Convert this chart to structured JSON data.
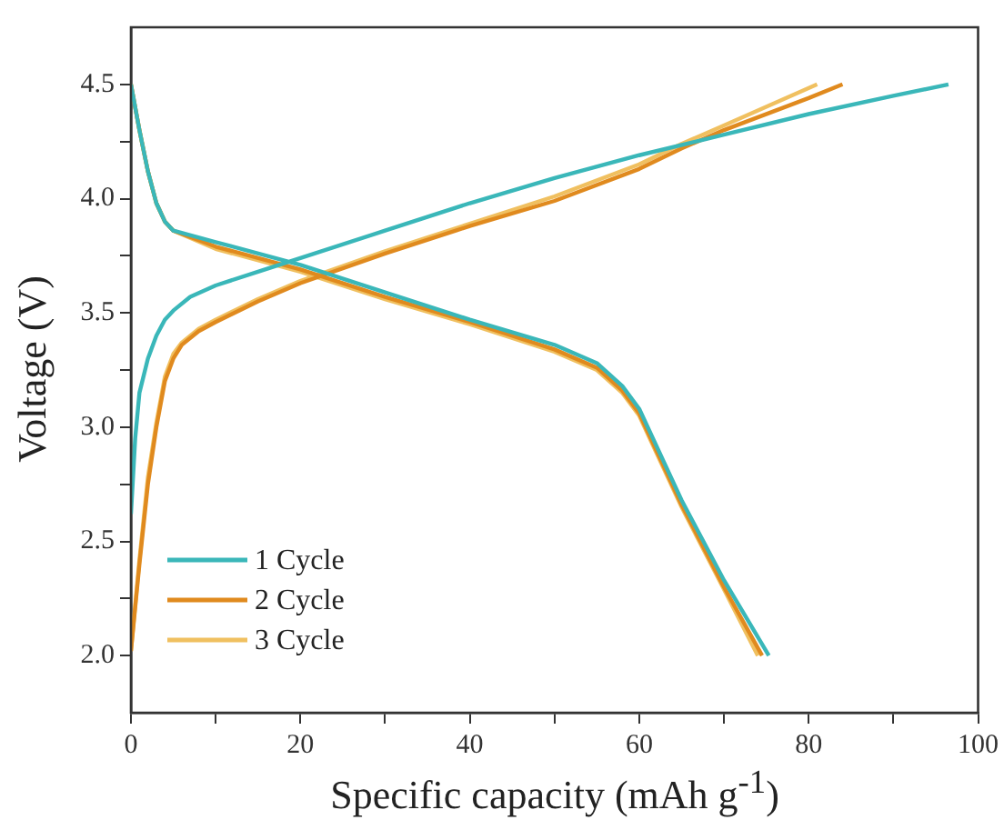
{
  "chart_data": {
    "type": "line",
    "xlabel": "Specific capacity (mAh g$^{-1}$)",
    "ylabel": "Voltage (V)",
    "xlim": [
      0,
      100
    ],
    "xticks": [
      0,
      {
        "value": 10,
        "label": null
      },
      20,
      {
        "value": 30,
        "label": null
      },
      40,
      {
        "value": 50,
        "label": null
      },
      60,
      {
        "value": 70,
        "label": null
      },
      80,
      {
        "value": 90,
        "label": null
      },
      100
    ],
    "ylim": [
      1.75,
      4.75
    ],
    "yticks": [
      {
        "value": 2,
        "label": "2.0"
      },
      {
        "value": 2.25,
        "label": null
      },
      {
        "value": 2.5,
        "label": "2.5"
      },
      {
        "value": 2.75,
        "label": null
      },
      {
        "value": 3,
        "label": "3.0"
      },
      {
        "value": 3.25,
        "label": null
      },
      {
        "value": 3.5,
        "label": "3.5"
      },
      {
        "value": 3.75,
        "label": null
      },
      {
        "value": 4,
        "label": "4.0"
      },
      {
        "value": 4.25,
        "label": null
      },
      {
        "value": 4.5,
        "label": "4.5"
      }
    ],
    "grid": false,
    "legend": "bottom left",
    "marker": "none",
    "line_style": "solid",
    "series": [
      {
        "name": "1 Cycle",
        "color": "#3ab7b9",
        "x": [
          0,
          0.5,
          1,
          2,
          3,
          4,
          5,
          7,
          10,
          15,
          20,
          30,
          40,
          50,
          60,
          70,
          80,
          90,
          96.5,
          null,
          0,
          1,
          2,
          3,
          4,
          5,
          10,
          20,
          30,
          40,
          50,
          55,
          58,
          60,
          62,
          65,
          70,
          75.3
        ],
        "values": [
          2.62,
          2.95,
          3.15,
          3.3,
          3.4,
          3.47,
          3.51,
          3.57,
          3.62,
          3.68,
          3.74,
          3.86,
          3.98,
          4.09,
          4.19,
          4.28,
          4.37,
          4.45,
          4.5,
          null,
          4.5,
          4.3,
          4.12,
          3.98,
          3.9,
          3.86,
          3.81,
          3.71,
          3.59,
          3.47,
          3.36,
          3.28,
          3.18,
          3.08,
          2.92,
          2.68,
          2.33,
          2.0
        ]
      },
      {
        "name": "2 Cycle",
        "color": "#e08a1e",
        "x": [
          0,
          1,
          2,
          3,
          4,
          5,
          6,
          8,
          10,
          15,
          20,
          30,
          40,
          50,
          60,
          65,
          70,
          80,
          84,
          null,
          0,
          1,
          2,
          3,
          4,
          5,
          10,
          20,
          30,
          40,
          50,
          55,
          58,
          60,
          62,
          65,
          70,
          74.5
        ],
        "values": [
          2.02,
          2.4,
          2.75,
          3.0,
          3.2,
          3.3,
          3.36,
          3.42,
          3.46,
          3.55,
          3.63,
          3.76,
          3.88,
          3.99,
          4.13,
          4.22,
          4.3,
          4.44,
          4.5,
          null,
          4.5,
          4.3,
          4.12,
          3.98,
          3.9,
          3.86,
          3.79,
          3.69,
          3.57,
          3.46,
          3.34,
          3.26,
          3.16,
          3.06,
          2.9,
          2.66,
          2.3,
          2.0
        ]
      },
      {
        "name": "3 Cycle",
        "color": "#f0c060",
        "x": [
          0,
          1,
          2,
          3,
          4,
          5,
          6,
          8,
          10,
          15,
          20,
          30,
          40,
          50,
          60,
          65,
          70,
          81,
          null,
          0,
          1,
          2,
          3,
          4,
          5,
          10,
          20,
          30,
          40,
          50,
          55,
          58,
          60,
          62,
          65,
          70,
          74
        ],
        "values": [
          2.02,
          2.42,
          2.78,
          3.02,
          3.22,
          3.32,
          3.37,
          3.43,
          3.47,
          3.56,
          3.64,
          3.77,
          3.89,
          4.01,
          4.15,
          4.24,
          4.32,
          4.5,
          null,
          4.5,
          4.3,
          4.12,
          3.98,
          3.9,
          3.86,
          3.78,
          3.68,
          3.56,
          3.45,
          3.33,
          3.25,
          3.15,
          3.05,
          2.89,
          2.65,
          2.29,
          2.0
        ]
      }
    ]
  }
}
